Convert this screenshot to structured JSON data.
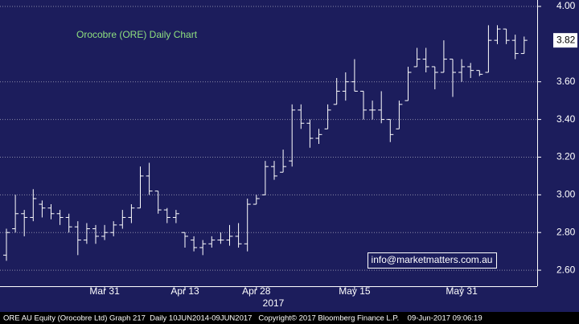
{
  "chart_data": {
    "type": "ohlc",
    "title": "Orocobre (ORE) Daily Chart",
    "annotation": "info@marketmatters.com.au",
    "year_label": "2017",
    "footer": "ORE AU Equity (Orocobre Ltd) Graph 217  Daily 10JUN2014-09JUN2017   Copyright© 2017 Bloomberg Finance L.P.    09-Jun-2017 09:06:19",
    "categories": [
      null,
      null,
      null,
      null,
      null,
      null,
      null,
      null,
      null,
      null,
      null,
      "Mar 31",
      null,
      null,
      null,
      null,
      null,
      null,
      null,
      null,
      "Apr 13",
      null,
      null,
      null,
      null,
      null,
      null,
      null,
      "Apr 28",
      null,
      null,
      null,
      null,
      null,
      null,
      null,
      null,
      null,
      null,
      "May 15",
      null,
      null,
      null,
      null,
      null,
      null,
      null,
      null,
      null,
      null,
      null,
      "May 31",
      null,
      null,
      null,
      null,
      null,
      null,
      null
    ],
    "open": [
      2.68,
      2.82,
      2.9,
      2.88,
      2.95,
      2.93,
      2.9,
      2.88,
      2.83,
      2.76,
      2.82,
      2.78,
      2.8,
      2.84,
      2.88,
      2.93,
      3.1,
      3.02,
      2.92,
      2.88,
      2.8,
      2.76,
      2.72,
      2.74,
      2.76,
      2.76,
      2.78,
      2.74,
      2.95,
      3.0,
      3.15,
      3.12,
      3.18,
      3.45,
      3.38,
      3.3,
      3.35,
      3.48,
      3.55,
      3.6,
      3.55,
      3.45,
      3.45,
      3.4,
      3.35,
      3.5,
      3.68,
      3.72,
      3.68,
      3.65,
      3.72,
      3.65,
      3.68,
      3.66,
      3.65,
      3.82,
      3.88,
      3.82,
      3.75
    ],
    "high": [
      2.82,
      3.0,
      2.92,
      3.03,
      2.97,
      2.95,
      2.92,
      2.9,
      2.86,
      2.85,
      2.84,
      2.84,
      2.86,
      2.92,
      2.95,
      3.15,
      3.17,
      3.02,
      2.93,
      2.92,
      2.8,
      2.78,
      2.76,
      2.78,
      2.8,
      2.84,
      2.85,
      2.98,
      3.0,
      3.18,
      3.18,
      3.24,
      3.48,
      3.48,
      3.4,
      3.35,
      3.48,
      3.62,
      3.65,
      3.72,
      3.55,
      3.5,
      3.55,
      3.4,
      3.5,
      3.68,
      3.78,
      3.78,
      3.68,
      3.82,
      3.72,
      3.72,
      3.7,
      3.66,
      3.9,
      3.9,
      3.88,
      3.85,
      3.84
    ],
    "low": [
      2.65,
      2.8,
      2.78,
      2.86,
      2.88,
      2.87,
      2.84,
      2.8,
      2.68,
      2.74,
      2.74,
      2.76,
      2.78,
      2.82,
      2.85,
      2.93,
      3.0,
      2.9,
      2.85,
      2.85,
      2.72,
      2.7,
      2.68,
      2.72,
      2.74,
      2.73,
      2.72,
      2.7,
      2.95,
      3.0,
      3.08,
      3.12,
      3.15,
      3.35,
      3.25,
      3.27,
      3.35,
      3.48,
      3.5,
      3.55,
      3.4,
      3.4,
      3.38,
      3.28,
      3.35,
      3.5,
      3.68,
      3.65,
      3.56,
      3.65,
      3.52,
      3.6,
      3.62,
      3.63,
      3.65,
      3.8,
      3.8,
      3.72,
      3.75
    ],
    "close": [
      2.8,
      2.9,
      2.88,
      2.98,
      2.93,
      2.9,
      2.88,
      2.83,
      2.76,
      2.82,
      2.78,
      2.8,
      2.84,
      2.88,
      2.93,
      3.1,
      3.02,
      2.92,
      2.88,
      2.9,
      2.78,
      2.72,
      2.74,
      2.76,
      2.76,
      2.78,
      2.74,
      2.95,
      2.98,
      3.15,
      3.1,
      3.15,
      3.45,
      3.38,
      3.3,
      3.32,
      3.45,
      3.55,
      3.6,
      3.55,
      3.45,
      3.45,
      3.4,
      3.32,
      3.48,
      3.65,
      3.72,
      3.68,
      3.65,
      3.72,
      3.65,
      3.68,
      3.66,
      3.64,
      3.82,
      3.88,
      3.82,
      3.75,
      3.82
    ],
    "color": "#ffffff",
    "last_price": 3.82,
    "ylim": [
      2.515,
      4.034
    ],
    "yticks": [
      {
        "value": 2.6,
        "label": "2.60"
      },
      {
        "value": 2.8,
        "label": "2.80"
      },
      {
        "value": 3.0,
        "label": "3.00"
      },
      {
        "value": 3.2,
        "label": "3.20"
      },
      {
        "value": 3.4,
        "label": "3.40"
      },
      {
        "value": 3.6,
        "label": "3.60"
      },
      {
        "value": 4.0,
        "label": "4.00"
      }
    ],
    "grid": true
  }
}
